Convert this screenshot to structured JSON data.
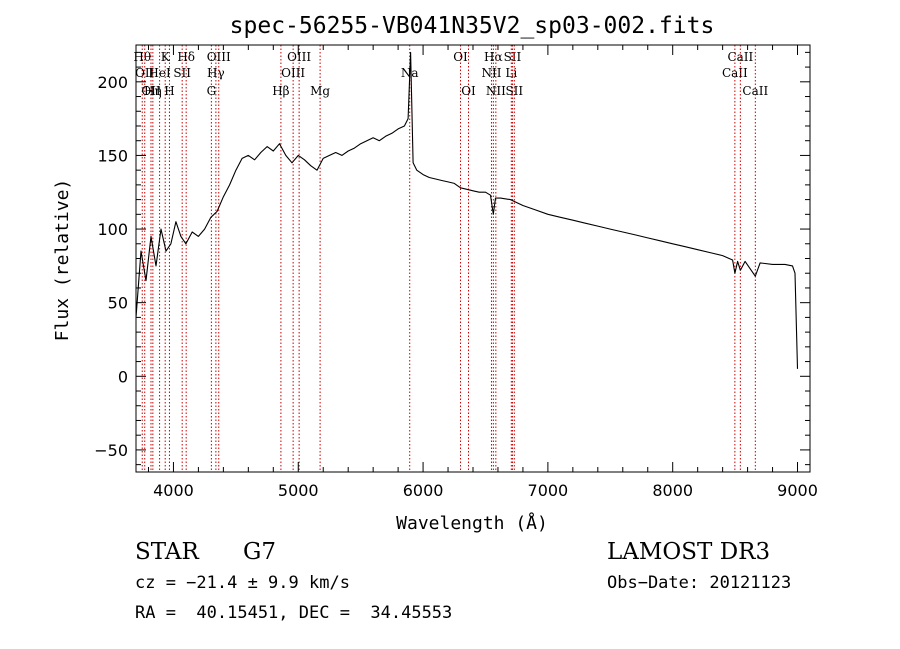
{
  "chart_data": {
    "type": "line",
    "title": "spec-56255-VB041N35V2_sp03-002.fits",
    "xlabel": "Wavelength (Å)",
    "ylabel": "Flux (relative)",
    "xlim": [
      3700,
      9100
    ],
    "ylim": [
      -65,
      225
    ],
    "xticks": [
      4000,
      5000,
      6000,
      7000,
      8000,
      9000
    ],
    "xtick_labels": [
      "4000",
      "5000",
      "6000",
      "7000",
      "8000",
      "9000"
    ],
    "yticks": [
      -50,
      0,
      50,
      100,
      150,
      200
    ],
    "ytick_labels": [
      "−50",
      "0",
      "50",
      "100",
      "150",
      "200"
    ],
    "grid": false,
    "line_color": "#000000",
    "marker_color": "#cc0000",
    "series": [
      {
        "name": "Flux",
        "x": [
          3700,
          3740,
          3780,
          3820,
          3860,
          3900,
          3940,
          3980,
          4020,
          4060,
          4100,
          4150,
          4200,
          4250,
          4300,
          4350,
          4400,
          4450,
          4500,
          4550,
          4600,
          4650,
          4700,
          4750,
          4800,
          4850,
          4900,
          4950,
          5000,
          5050,
          5100,
          5150,
          5200,
          5250,
          5300,
          5350,
          5400,
          5450,
          5500,
          5550,
          5600,
          5650,
          5700,
          5750,
          5800,
          5850,
          5880,
          5900,
          5920,
          5950,
          6000,
          6050,
          6100,
          6150,
          6200,
          6250,
          6300,
          6350,
          6400,
          6450,
          6500,
          6540,
          6563,
          6580,
          6620,
          6700,
          6800,
          6900,
          7000,
          7100,
          7200,
          7300,
          7400,
          7500,
          7600,
          7700,
          7800,
          7900,
          8000,
          8100,
          8200,
          8300,
          8400,
          8480,
          8498,
          8520,
          8542,
          8580,
          8662,
          8700,
          8800,
          8900,
          8960,
          8980,
          9000
        ],
        "y": [
          40,
          85,
          65,
          95,
          75,
          100,
          85,
          90,
          105,
          95,
          90,
          98,
          95,
          100,
          108,
          112,
          122,
          130,
          140,
          148,
          150,
          147,
          152,
          156,
          153,
          158,
          150,
          145,
          150,
          147,
          143,
          140,
          148,
          150,
          152,
          150,
          153,
          155,
          158,
          160,
          162,
          160,
          163,
          165,
          168,
          170,
          175,
          220,
          145,
          140,
          137,
          135,
          134,
          133,
          132,
          131,
          128,
          127,
          126,
          125,
          125,
          123,
          110,
          121,
          121,
          120,
          116,
          113,
          110,
          108,
          106,
          104,
          102,
          100,
          98,
          96,
          94,
          92,
          90,
          88,
          86,
          84,
          82,
          79,
          70,
          78,
          72,
          78,
          68,
          77,
          76,
          76,
          75,
          70,
          5
        ]
      }
    ],
    "line_markers": [
      {
        "x": 3750,
        "label": "Hθ",
        "row": 0
      },
      {
        "x": 3770,
        "label": "OII",
        "row": 1
      },
      {
        "x": 3820,
        "label": "OII",
        "row": 2
      },
      {
        "x": 3835,
        "label": "Hη",
        "row": 2
      },
      {
        "x": 3889,
        "label": "HeI",
        "row": 1
      },
      {
        "x": 3934,
        "label": "K",
        "row": 0
      },
      {
        "x": 3968,
        "label": "H",
        "row": 2
      },
      {
        "x": 4070,
        "label": "SII",
        "row": 1
      },
      {
        "x": 4102,
        "label": "Hδ",
        "row": 0
      },
      {
        "x": 4304,
        "label": "G",
        "row": 2
      },
      {
        "x": 4340,
        "label": "Hγ",
        "row": 1
      },
      {
        "x": 4363,
        "label": "OIII",
        "row": 0
      },
      {
        "x": 4861,
        "label": "Hβ",
        "row": 2
      },
      {
        "x": 4959,
        "label": "OIII",
        "row": 1
      },
      {
        "x": 5007,
        "label": "OIII",
        "row": 0
      },
      {
        "x": 5175,
        "label": "Mg",
        "row": 2
      },
      {
        "x": 5893,
        "label": "Na",
        "row": 1
      },
      {
        "x": 6300,
        "label": "OI",
        "row": 0
      },
      {
        "x": 6364,
        "label": "OI",
        "row": 2
      },
      {
        "x": 6548,
        "label": "NII",
        "row": 1
      },
      {
        "x": 6563,
        "label": "Hα",
        "row": 0
      },
      {
        "x": 6583,
        "label": "NII",
        "row": 2
      },
      {
        "x": 6707,
        "label": "Li",
        "row": 1
      },
      {
        "x": 6716,
        "label": "SII",
        "row": 0
      },
      {
        "x": 6731,
        "label": "SII",
        "row": 2
      },
      {
        "x": 8498,
        "label": "CaII",
        "row": 1
      },
      {
        "x": 8542,
        "label": "CaII",
        "row": 0
      },
      {
        "x": 8662,
        "label": "CaII",
        "row": 2
      }
    ]
  },
  "info": {
    "object_class": "STAR",
    "subclass": "G7",
    "survey": "LAMOST DR3",
    "redshift": "cz = −21.4 ± 9.9 km/s",
    "obs_date": "Obs−Date: 20121123",
    "coords": "RA =  40.15451, DEC =  34.45553"
  }
}
